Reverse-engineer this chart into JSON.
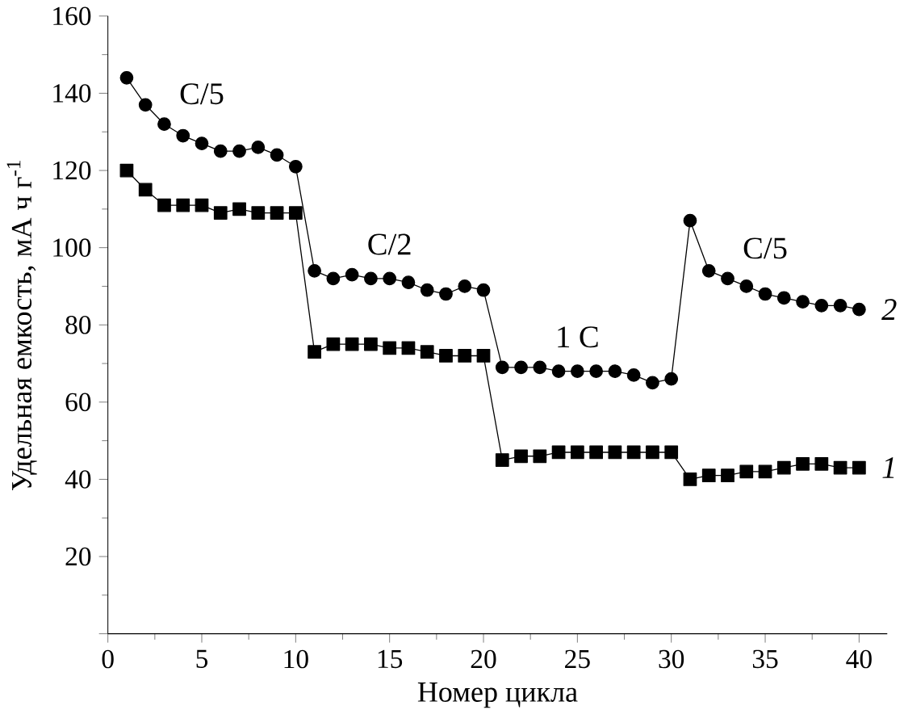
{
  "chart_data": {
    "type": "line",
    "xlabel": "Номер цикла",
    "ylabel": "Удельная емкость, мА ч г$^{-1}$",
    "x": [
      1,
      2,
      3,
      4,
      5,
      6,
      7,
      8,
      9,
      10,
      11,
      12,
      13,
      14,
      15,
      16,
      17,
      18,
      19,
      20,
      21,
      22,
      23,
      24,
      25,
      26,
      27,
      28,
      29,
      30,
      31,
      32,
      33,
      34,
      35,
      36,
      37,
      38,
      39,
      40
    ],
    "series": [
      {
        "name": "1",
        "color": "#000000",
        "marker": "square",
        "values": [
          120,
          115,
          111,
          111,
          111,
          109,
          110,
          109,
          109,
          109,
          73,
          75,
          75,
          75,
          74,
          74,
          73,
          72,
          72,
          72,
          45,
          46,
          46,
          47,
          47,
          47,
          47,
          47,
          47,
          47,
          40,
          41,
          41,
          42,
          42,
          43,
          44,
          44,
          43,
          43
        ]
      },
      {
        "name": "2",
        "color": "#000000",
        "marker": "circle",
        "values": [
          144,
          137,
          132,
          129,
          127,
          125,
          125,
          126,
          124,
          121,
          94,
          92,
          93,
          92,
          92,
          91,
          89,
          88,
          90,
          89,
          69,
          69,
          69,
          68,
          68,
          68,
          68,
          67,
          65,
          66,
          107,
          94,
          92,
          90,
          88,
          87,
          86,
          85,
          85,
          84
        ]
      }
    ],
    "xlim": [
      0,
      41.5
    ],
    "xticks": [
      0,
      5,
      10,
      15,
      20,
      25,
      30,
      35,
      40
    ],
    "ylim": [
      0,
      160
    ],
    "yticks": [
      {
        "value": 0,
        "label": null
      },
      20,
      40,
      60,
      80,
      100,
      120,
      140,
      160
    ],
    "annotations": [
      "C/5",
      "C/2",
      "1 C",
      "C/5"
    ],
    "grid": false
  }
}
